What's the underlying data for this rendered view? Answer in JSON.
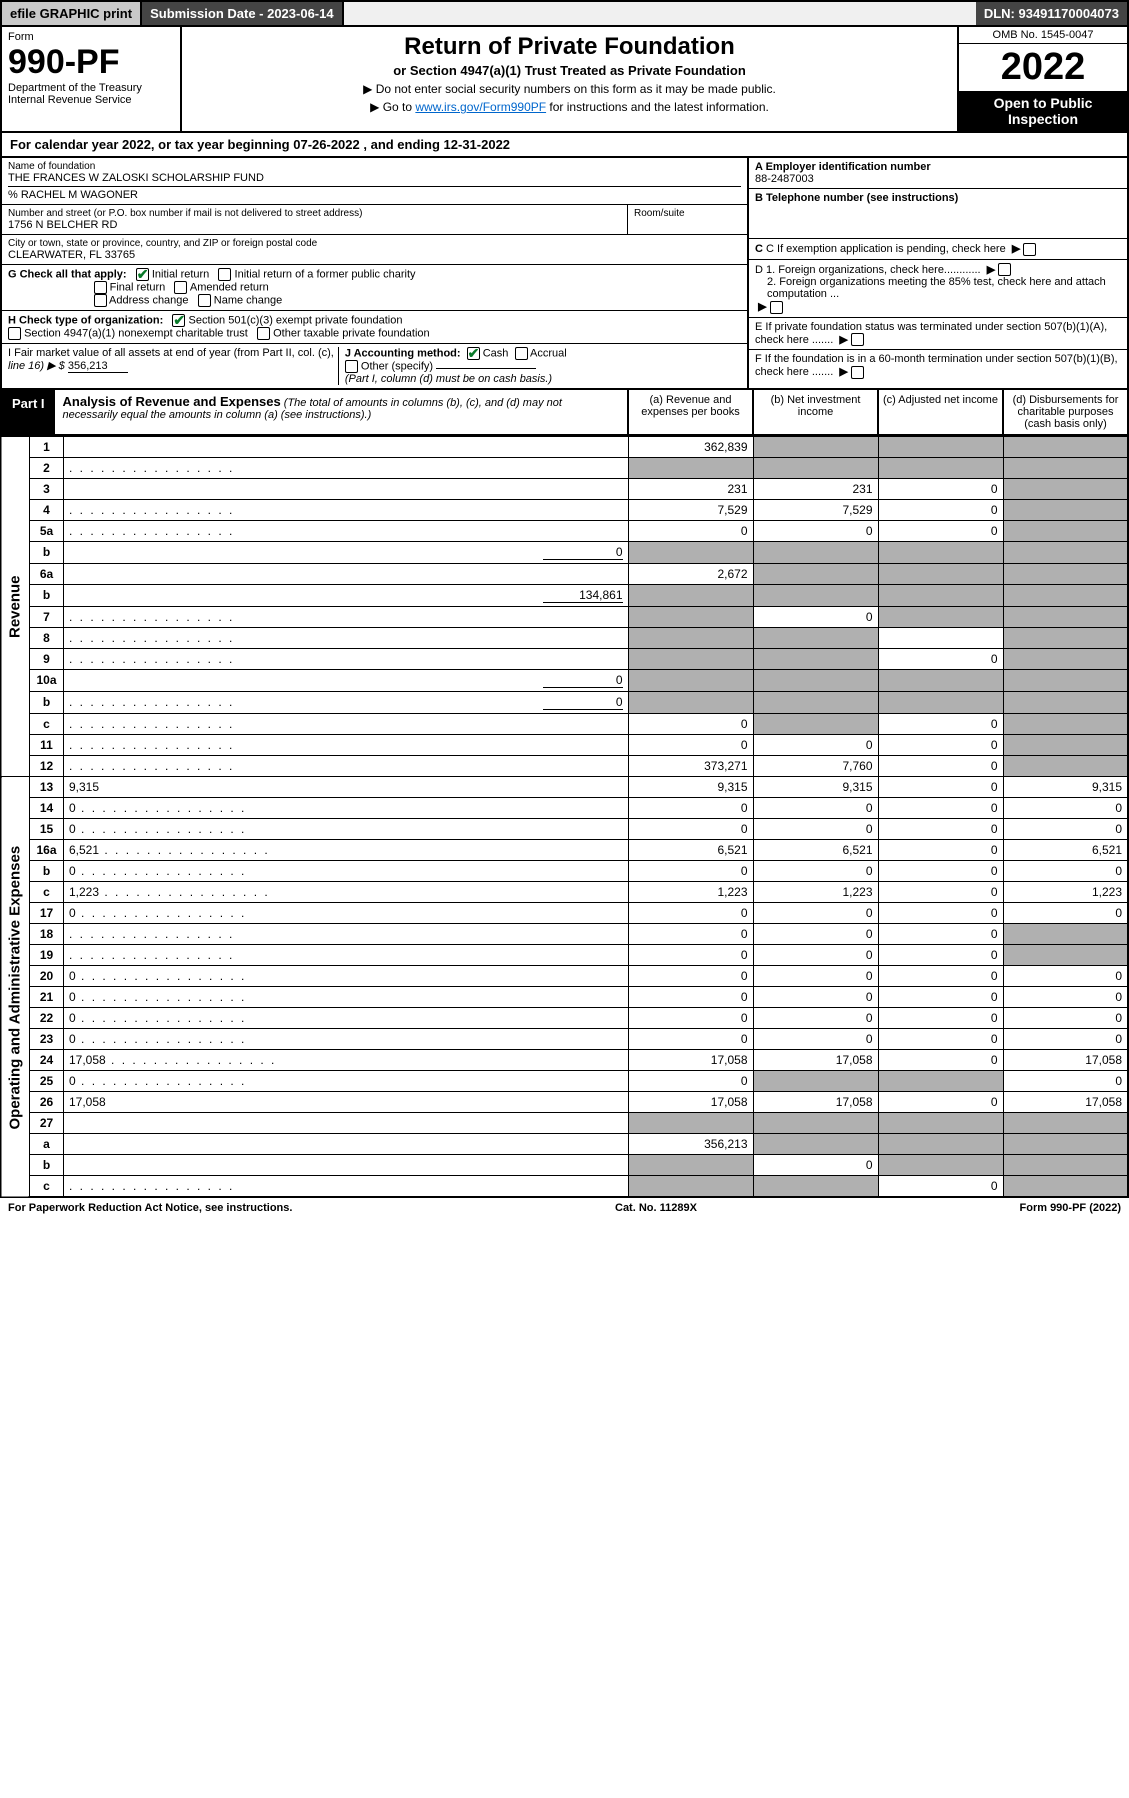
{
  "topbar": {
    "efile": "efile GRAPHIC print",
    "submission": "Submission Date - 2023-06-14",
    "dln": "DLN: 93491170004073"
  },
  "header": {
    "form_word": "Form",
    "form_no": "990-PF",
    "dept1": "Department of the Treasury",
    "dept2": "Internal Revenue Service",
    "title": "Return of Private Foundation",
    "subtitle": "or Section 4947(a)(1) Trust Treated as Private Foundation",
    "note1": "▶ Do not enter social security numbers on this form as it may be made public.",
    "note2_pre": "▶ Go to ",
    "note2_link": "www.irs.gov/Form990PF",
    "note2_post": " for instructions and the latest information.",
    "omb": "OMB No. 1545-0047",
    "year": "2022",
    "open": "Open to Public Inspection"
  },
  "calyear": {
    "text_pre": "For calendar year 2022, or tax year beginning ",
    "begin": "07-26-2022",
    "mid": " , and ending ",
    "end": "12-31-2022"
  },
  "entity": {
    "name_label": "Name of foundation",
    "name": "THE FRANCES W ZALOSKI SCHOLARSHIP FUND",
    "care_of": "% RACHEL M WAGONER",
    "addr_label": "Number and street (or P.O. box number if mail is not delivered to street address)",
    "addr": "1756 N BELCHER RD",
    "room_label": "Room/suite",
    "city_label": "City or town, state or province, country, and ZIP or foreign postal code",
    "city": "CLEARWATER, FL  33765",
    "ein_label": "A Employer identification number",
    "ein": "88-2487003",
    "phone_label": "B Telephone number (see instructions)",
    "c_label": "C If exemption application is pending, check here",
    "d1_label": "D 1. Foreign organizations, check here............",
    "d2_label": "2. Foreign organizations meeting the 85% test, check here and attach computation ...",
    "e_label": "E  If private foundation status was terminated under section 507(b)(1)(A), check here .......",
    "f_label": "F  If the foundation is in a 60-month termination under section 507(b)(1)(B), check here .......",
    "g_label": "G Check all that apply:",
    "g_opts": [
      "Initial return",
      "Initial return of a former public charity",
      "Final return",
      "Amended return",
      "Address change",
      "Name change"
    ],
    "h_label": "H Check type of organization:",
    "h_opts": [
      "Section 501(c)(3) exempt private foundation",
      "Section 4947(a)(1) nonexempt charitable trust",
      "Other taxable private foundation"
    ],
    "i_label_1": "I Fair market value of all assets at end of year (from Part II, col. (c),",
    "i_label_2": "line 16) ▶ $",
    "i_value": "356,213",
    "j_label": "J Accounting method:",
    "j_opts": [
      "Cash",
      "Accrual"
    ],
    "j_other": "Other (specify)",
    "j_note": "(Part I, column (d) must be on cash basis.)"
  },
  "part1": {
    "tab": "Part I",
    "title_bold": "Analysis of Revenue and Expenses",
    "title_rest": " (The total of amounts in columns (b), (c), and (d) may not necessarily equal the amounts in column (a) (see instructions).)",
    "cols": {
      "a": "(a)  Revenue and expenses per books",
      "b": "(b)  Net investment income",
      "c": "(c)  Adjusted net income",
      "d": "(d)  Disbursements for charitable purposes (cash basis only)"
    }
  },
  "side_labels": {
    "revenue": "Revenue",
    "expenses": "Operating and Administrative Expenses"
  },
  "rows": [
    {
      "n": "1",
      "d": "",
      "a": "362,839",
      "b": "",
      "c": "",
      "shade_b": true,
      "shade_c": true,
      "shade_d": true
    },
    {
      "n": "2",
      "d": "",
      "dots": true,
      "a": "",
      "b": "",
      "c": "",
      "shade_a": true,
      "shade_b": true,
      "shade_c": true,
      "shade_d": true
    },
    {
      "n": "3",
      "d": "",
      "a": "231",
      "b": "231",
      "c": "0",
      "shade_d": true
    },
    {
      "n": "4",
      "d": "",
      "dots": true,
      "a": "7,529",
      "b": "7,529",
      "c": "0",
      "shade_d": true
    },
    {
      "n": "5a",
      "d": "",
      "dots": true,
      "a": "0",
      "b": "0",
      "c": "0",
      "shade_d": true
    },
    {
      "n": "b",
      "d": "",
      "inline": "0",
      "a": "",
      "b": "",
      "c": "",
      "shade_a": true,
      "shade_b": true,
      "shade_c": true,
      "shade_d": true
    },
    {
      "n": "6a",
      "d": "",
      "a": "2,672",
      "b": "",
      "c": "",
      "shade_b": true,
      "shade_c": true,
      "shade_d": true
    },
    {
      "n": "b",
      "d": "",
      "inline": "134,861",
      "a": "",
      "b": "",
      "c": "",
      "shade_a": true,
      "shade_b": true,
      "shade_c": true,
      "shade_d": true
    },
    {
      "n": "7",
      "d": "",
      "dots": true,
      "a": "",
      "b": "0",
      "c": "",
      "shade_a": true,
      "shade_c": true,
      "shade_d": true
    },
    {
      "n": "8",
      "d": "",
      "dots": true,
      "a": "",
      "b": "",
      "c": "",
      "shade_a": true,
      "shade_b": true,
      "shade_d": true
    },
    {
      "n": "9",
      "d": "",
      "dots": true,
      "a": "",
      "b": "",
      "c": "0",
      "shade_a": true,
      "shade_b": true,
      "shade_d": true
    },
    {
      "n": "10a",
      "d": "",
      "inline": "0",
      "a": "",
      "b": "",
      "c": "",
      "shade_a": true,
      "shade_b": true,
      "shade_c": true,
      "shade_d": true
    },
    {
      "n": "b",
      "d": "",
      "dots": true,
      "inline": "0",
      "a": "",
      "b": "",
      "c": "",
      "shade_a": true,
      "shade_b": true,
      "shade_c": true,
      "shade_d": true
    },
    {
      "n": "c",
      "d": "",
      "dots": true,
      "a": "0",
      "b": "",
      "c": "0",
      "shade_b": true,
      "shade_d": true
    },
    {
      "n": "11",
      "d": "",
      "dots": true,
      "a": "0",
      "b": "0",
      "c": "0",
      "shade_d": true
    },
    {
      "n": "12",
      "d": "",
      "dots": true,
      "a": "373,271",
      "b": "7,760",
      "c": "0",
      "shade_d": true
    },
    {
      "n": "13",
      "d": "9,315",
      "a": "9,315",
      "b": "9,315",
      "c": "0"
    },
    {
      "n": "14",
      "d": "0",
      "dots": true,
      "a": "0",
      "b": "0",
      "c": "0"
    },
    {
      "n": "15",
      "d": "0",
      "dots": true,
      "a": "0",
      "b": "0",
      "c": "0"
    },
    {
      "n": "16a",
      "d": "6,521",
      "dots": true,
      "a": "6,521",
      "b": "6,521",
      "c": "0"
    },
    {
      "n": "b",
      "d": "0",
      "dots": true,
      "a": "0",
      "b": "0",
      "c": "0"
    },
    {
      "n": "c",
      "d": "1,223",
      "dots": true,
      "a": "1,223",
      "b": "1,223",
      "c": "0"
    },
    {
      "n": "17",
      "d": "0",
      "dots": true,
      "a": "0",
      "b": "0",
      "c": "0"
    },
    {
      "n": "18",
      "d": "",
      "dots": true,
      "a": "0",
      "b": "0",
      "c": "0",
      "shade_d": true
    },
    {
      "n": "19",
      "d": "",
      "dots": true,
      "a": "0",
      "b": "0",
      "c": "0",
      "shade_d": true
    },
    {
      "n": "20",
      "d": "0",
      "dots": true,
      "a": "0",
      "b": "0",
      "c": "0"
    },
    {
      "n": "21",
      "d": "0",
      "dots": true,
      "a": "0",
      "b": "0",
      "c": "0"
    },
    {
      "n": "22",
      "d": "0",
      "dots": true,
      "a": "0",
      "b": "0",
      "c": "0"
    },
    {
      "n": "23",
      "d": "0",
      "dots": true,
      "a": "0",
      "b": "0",
      "c": "0"
    },
    {
      "n": "24",
      "d": "17,058",
      "dots": true,
      "a": "17,058",
      "b": "17,058",
      "c": "0"
    },
    {
      "n": "25",
      "d": "0",
      "dots": true,
      "a": "0",
      "b": "",
      "c": "",
      "shade_b": true,
      "shade_c": true
    },
    {
      "n": "26",
      "d": "17,058",
      "a": "17,058",
      "b": "17,058",
      "c": "0"
    },
    {
      "n": "27",
      "d": "",
      "a": "",
      "b": "",
      "c": "",
      "shade_a": true,
      "shade_b": true,
      "shade_c": true,
      "shade_d": true
    },
    {
      "n": "a",
      "d": "",
      "a": "356,213",
      "b": "",
      "c": "",
      "shade_b": true,
      "shade_c": true,
      "shade_d": true
    },
    {
      "n": "b",
      "d": "",
      "a": "",
      "b": "0",
      "c": "",
      "shade_a": true,
      "shade_c": true,
      "shade_d": true
    },
    {
      "n": "c",
      "d": "",
      "dots": true,
      "a": "",
      "b": "",
      "c": "0",
      "shade_a": true,
      "shade_b": true,
      "shade_d": true
    }
  ],
  "footer": {
    "left": "For Paperwork Reduction Act Notice, see instructions.",
    "mid": "Cat. No. 11289X",
    "right": "Form 990-PF (2022)"
  },
  "colors": {
    "shade": "#b0b0b0",
    "darkbar": "#444444"
  }
}
